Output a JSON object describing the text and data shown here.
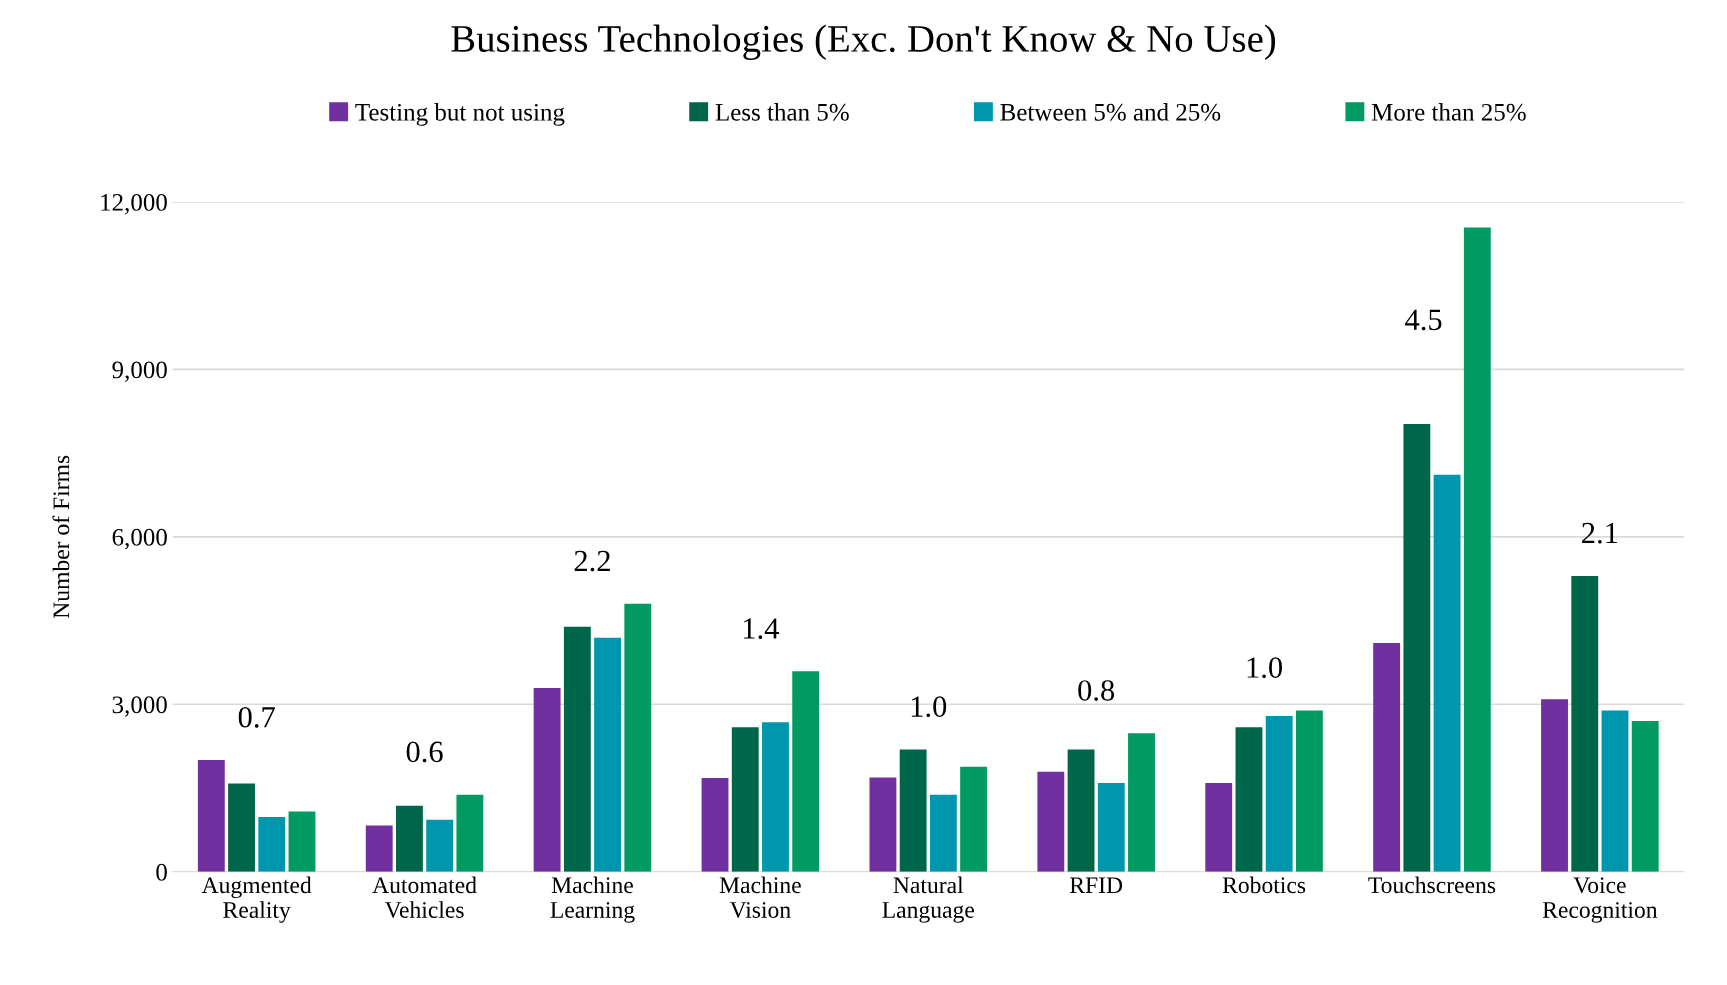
{
  "chart_data": {
    "type": "bar",
    "title": "Business Technologies (Exc. Don't Know & No Use)",
    "ylabel": "Number of Firms",
    "categories": [
      "Augmented\nReality",
      "Automated\nVehicles",
      "Machine\nLearning",
      "Machine\nVision",
      "Natural\nLanguage",
      "RFID",
      "Robotics",
      "Touchscreens",
      "Voice\nRecognition"
    ],
    "series": [
      {
        "name": "Testing but not using",
        "color": "#7030a0",
        "values": [
          2000,
          830,
          3290,
          1680,
          1690,
          1790,
          1590,
          4100,
          3090
        ]
      },
      {
        "name": "Less than 5%",
        "color": "#00664a",
        "values": [
          1580,
          1180,
          4390,
          2590,
          2190,
          2190,
          2590,
          8020,
          5300
        ]
      },
      {
        "name": "Between 5% and 25%",
        "color": "#0096ad",
        "values": [
          980,
          930,
          4190,
          2680,
          1380,
          1590,
          2790,
          7110,
          2890
        ]
      },
      {
        "name": "More than 25%",
        "color": "#009a62",
        "values": [
          1080,
          1380,
          4800,
          3590,
          1880,
          2480,
          2890,
          11540,
          2700
        ]
      }
    ],
    "ylim": [
      0,
      12000
    ],
    "yticks": [
      {
        "value": 0,
        "label": "0"
      },
      {
        "value": 3000,
        "label": "3,000"
      },
      {
        "value": 6000,
        "label": "6,000"
      },
      {
        "value": 9000,
        "label": "9,000"
      },
      {
        "value": 12000,
        "label": "12,000"
      }
    ],
    "grid": "y",
    "legend": "top",
    "annotations": [
      "0.7",
      "0.6",
      "2.2",
      "1.4",
      "1.0",
      "0.8",
      "1.0",
      "4.5",
      "2.1"
    ]
  }
}
